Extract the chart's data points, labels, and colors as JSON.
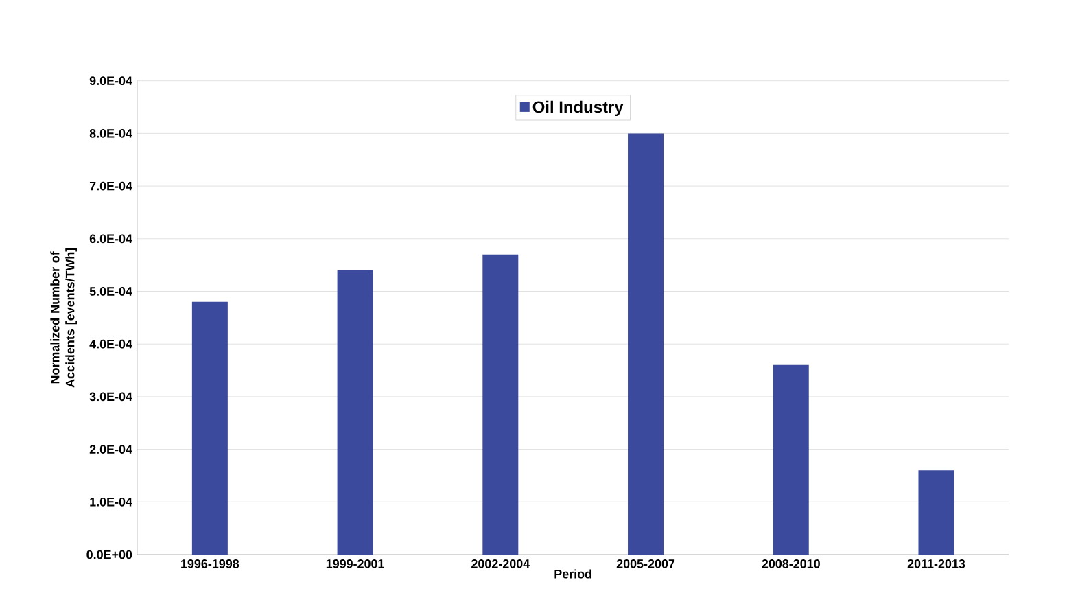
{
  "chart_data": {
    "type": "bar",
    "xlabel": "Period",
    "ylabel": "Normalized Number of Accidents [events/TWh]",
    "categories": [
      "1996-1998",
      "1999-2001",
      "2002-2004",
      "2005-2007",
      "2008-2010",
      "2011-2013"
    ],
    "series": [
      {
        "name": "Oil Industry",
        "color": "#3b4a9c",
        "values": [
          0.00048,
          0.00054,
          0.00057,
          0.0008,
          0.00036,
          0.00016
        ]
      }
    ],
    "ylim": [
      0,
      0.0009
    ],
    "yticks": [
      {
        "value": 0,
        "label": "0.0E+00"
      },
      {
        "value": 0.0001,
        "label": "1.0E-04"
      },
      {
        "value": 0.0002,
        "label": "2.0E-04"
      },
      {
        "value": 0.0003,
        "label": "3.0E-04"
      },
      {
        "value": 0.0004,
        "label": "4.0E-04"
      },
      {
        "value": 0.0005,
        "label": "5.0E-04"
      },
      {
        "value": 0.0006,
        "label": "6.0E-04"
      },
      {
        "value": 0.0007,
        "label": "7.0E-04"
      },
      {
        "value": 0.0008,
        "label": "8.0E-04"
      },
      {
        "value": 0.0009,
        "label": "9.0E-04"
      }
    ],
    "grid": "y",
    "legend": "top"
  }
}
